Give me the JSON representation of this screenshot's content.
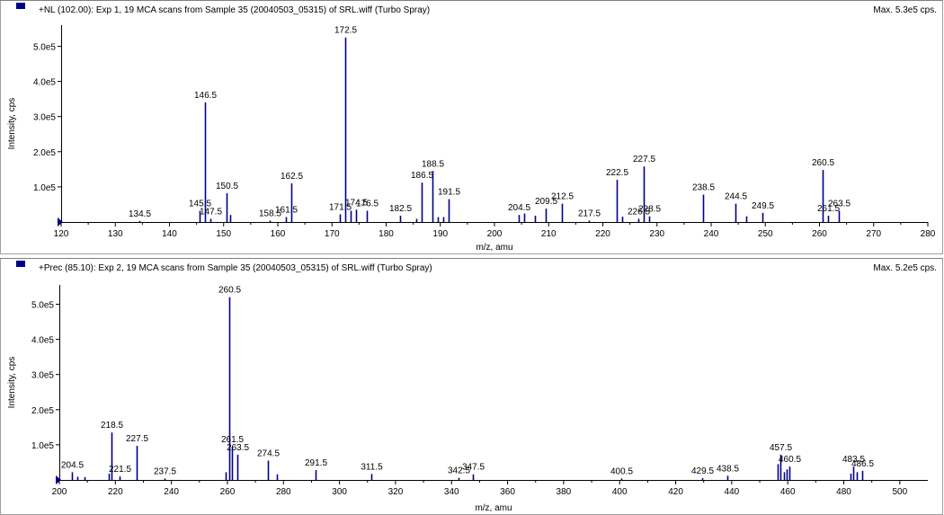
{
  "accent_color": "#00008b",
  "chart_data": [
    {
      "type": "bar",
      "header": "+NL (102.00): Exp 1, 19 MCA scans from Sample 35 (20040503_05315) of SRL.wiff (Turbo Spray)",
      "max_label": "Max. 5.3e5 cps.",
      "xlabel": "m/z, amu",
      "ylabel": "Intensity, cps",
      "xlim": [
        120,
        280
      ],
      "ylim": [
        0,
        560000.0
      ],
      "xticks": [
        120,
        130,
        140,
        150,
        160,
        170,
        180,
        190,
        200,
        210,
        220,
        230,
        240,
        250,
        260,
        270,
        280
      ],
      "xtick_labels": [
        "120",
        "130",
        "140",
        "150",
        "160",
        "170",
        "180",
        "190",
        "200",
        "210",
        "220",
        "230",
        "240",
        "250",
        "260",
        "270",
        "280"
      ],
      "yticks": [
        100000.0,
        200000.0,
        300000.0,
        400000.0,
        500000.0
      ],
      "ytick_labels": [
        "1.0e5",
        "2.0e5",
        "3.0e5",
        "4.0e5",
        "5.0e5"
      ],
      "peaks": [
        {
          "x": 134.5,
          "y": 3000,
          "label": "134.5"
        },
        {
          "x": 145.5,
          "y": 32000,
          "label": "145.5"
        },
        {
          "x": 146.5,
          "y": 340000,
          "label": "146.5"
        },
        {
          "x": 147.5,
          "y": 9000,
          "label": "147.5"
        },
        {
          "x": 150.5,
          "y": 82000,
          "label": "150.5"
        },
        {
          "x": 151.2,
          "y": 20000
        },
        {
          "x": 158.5,
          "y": 4000,
          "label": "158.5"
        },
        {
          "x": 161.5,
          "y": 14000,
          "label": "161.5"
        },
        {
          "x": 162.5,
          "y": 110000,
          "label": "162.5"
        },
        {
          "x": 171.5,
          "y": 22000,
          "label": "171.5"
        },
        {
          "x": 172.5,
          "y": 525000,
          "label": "172.5"
        },
        {
          "x": 173.5,
          "y": 32000
        },
        {
          "x": 174.5,
          "y": 35000,
          "label": "174.5"
        },
        {
          "x": 176.5,
          "y": 32000,
          "label": "176.5"
        },
        {
          "x": 182.5,
          "y": 18000,
          "label": "182.5"
        },
        {
          "x": 185.5,
          "y": 9000
        },
        {
          "x": 186.5,
          "y": 112000,
          "label": "186.5"
        },
        {
          "x": 188.5,
          "y": 145000,
          "label": "188.5"
        },
        {
          "x": 189.5,
          "y": 14000
        },
        {
          "x": 190.5,
          "y": 14000
        },
        {
          "x": 191.5,
          "y": 65000,
          "label": "191.5"
        },
        {
          "x": 204.5,
          "y": 20000,
          "label": "204.5"
        },
        {
          "x": 205.5,
          "y": 24000
        },
        {
          "x": 207.5,
          "y": 18000
        },
        {
          "x": 209.5,
          "y": 38000,
          "label": "209.5"
        },
        {
          "x": 212.5,
          "y": 52000,
          "label": "212.5"
        },
        {
          "x": 217.5,
          "y": 4000,
          "label": "217.5"
        },
        {
          "x": 222.5,
          "y": 120000,
          "label": "222.5"
        },
        {
          "x": 223.5,
          "y": 15000
        },
        {
          "x": 226.5,
          "y": 9000,
          "label": "226.5"
        },
        {
          "x": 227.5,
          "y": 158000,
          "label": "227.5"
        },
        {
          "x": 228.5,
          "y": 16000,
          "label": "228.5"
        },
        {
          "x": 238.5,
          "y": 78000,
          "label": "238.5"
        },
        {
          "x": 244.5,
          "y": 52000,
          "label": "244.5"
        },
        {
          "x": 246.5,
          "y": 16000
        },
        {
          "x": 249.5,
          "y": 26000,
          "label": "249.5"
        },
        {
          "x": 260.5,
          "y": 148000,
          "label": "260.5"
        },
        {
          "x": 261.5,
          "y": 18000,
          "label": "261.5"
        },
        {
          "x": 263.5,
          "y": 32000,
          "label": "263.5"
        }
      ]
    },
    {
      "type": "bar",
      "header": "+Prec (85.10): Exp 2, 19 MCA scans from Sample 35 (20040503_05315) of SRL.wiff (Turbo Spray)",
      "max_label": "Max. 5.2e5 cps.",
      "xlabel": "m/z, amu",
      "ylabel": "Intensity, cps",
      "xlim": [
        200,
        510
      ],
      "ylim": [
        0,
        555000.0
      ],
      "xticks": [
        200,
        220,
        240,
        260,
        280,
        300,
        320,
        340,
        360,
        380,
        400,
        420,
        440,
        460,
        480,
        500
      ],
      "xtick_labels": [
        "200",
        "220",
        "240",
        "260",
        "280",
        "300",
        "320",
        "340",
        "360",
        "380",
        "400",
        "420",
        "440",
        "460",
        "480",
        "500"
      ],
      "yticks": [
        100000.0,
        200000.0,
        300000.0,
        400000.0,
        500000.0
      ],
      "ytick_labels": [
        "1.0e5",
        "2.0e5",
        "3.0e5",
        "4.0e5",
        "5.0e5"
      ],
      "peaks": [
        {
          "x": 204.5,
          "y": 22000,
          "label": "204.5"
        },
        {
          "x": 206.5,
          "y": 9000
        },
        {
          "x": 209.0,
          "y": 8000
        },
        {
          "x": 217.5,
          "y": 18000
        },
        {
          "x": 218.5,
          "y": 135000,
          "label": "218.5"
        },
        {
          "x": 221.5,
          "y": 10000,
          "label": "221.5"
        },
        {
          "x": 227.5,
          "y": 97000,
          "label": "227.5"
        },
        {
          "x": 237.5,
          "y": 4000,
          "label": "237.5"
        },
        {
          "x": 259.5,
          "y": 22000
        },
        {
          "x": 260.5,
          "y": 520000,
          "label": "260.5"
        },
        {
          "x": 261.5,
          "y": 95000,
          "label": "261.5"
        },
        {
          "x": 263.5,
          "y": 72000,
          "label": "263.5"
        },
        {
          "x": 274.5,
          "y": 55000,
          "label": "274.5"
        },
        {
          "x": 277.5,
          "y": 16000
        },
        {
          "x": 291.5,
          "y": 28000,
          "label": "291.5"
        },
        {
          "x": 311.5,
          "y": 17000,
          "label": "311.5"
        },
        {
          "x": 342.5,
          "y": 6000,
          "label": "342.5"
        },
        {
          "x": 347.5,
          "y": 16000,
          "label": "347.5"
        },
        {
          "x": 400.5,
          "y": 4000,
          "label": "400.5"
        },
        {
          "x": 429.5,
          "y": 5000,
          "label": "429.5"
        },
        {
          "x": 438.5,
          "y": 12000,
          "label": "438.5"
        },
        {
          "x": 456.5,
          "y": 45000
        },
        {
          "x": 457.5,
          "y": 72000,
          "label": "457.5"
        },
        {
          "x": 458.5,
          "y": 22000
        },
        {
          "x": 459.5,
          "y": 30000
        },
        {
          "x": 460.5,
          "y": 38000,
          "label": "460.5"
        },
        {
          "x": 482.5,
          "y": 18000
        },
        {
          "x": 483.5,
          "y": 38000,
          "label": "483.5"
        },
        {
          "x": 484.5,
          "y": 22000
        },
        {
          "x": 486.5,
          "y": 26000,
          "label": "486.5"
        }
      ]
    }
  ]
}
